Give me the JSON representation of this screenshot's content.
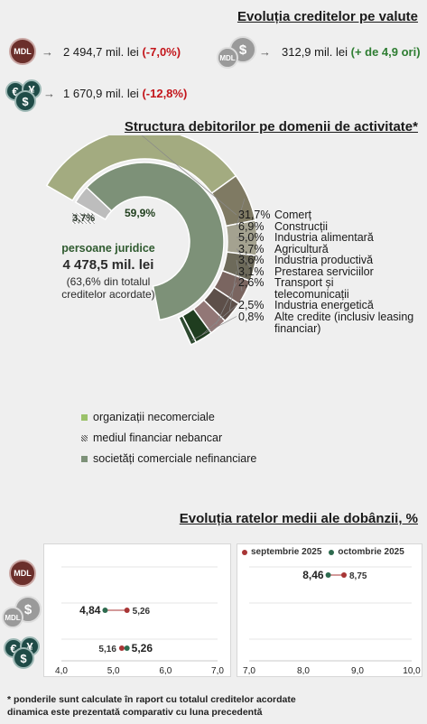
{
  "credits_section": {
    "title": "Evoluția creditelor pe valute",
    "mdl": {
      "icon": "mdl-coin-icon",
      "code": "MDL",
      "value": "2 494,7 mil. lei",
      "change": "(-7,0%)"
    },
    "fx_usd": {
      "icon": "dollar-coin-icon",
      "value": "312,9 mil. lei",
      "change": "(+ de 4,9 ori)"
    },
    "fx_eur": {
      "icon": "euro-yen-dollar-coins-icon",
      "value": "1 670,9 mil. lei",
      "change": "(-12,8%)"
    },
    "arrow": "→"
  },
  "structure_section": {
    "title": "Structura debitorilor pe domenii de activitate*",
    "center": {
      "title": "persoane juridice",
      "amount": "4 478,5 mil. lei",
      "note_line1": "(63,6% din totalul",
      "note_line2": "creditelor acordate)"
    },
    "inner_labels": {
      "small": "3,7%",
      "large": "59,9%"
    },
    "legend": [
      {
        "label": "organizații necomerciale",
        "color": "#9bc26a"
      },
      {
        "label": "mediul financiar nebancar",
        "color": "#444444"
      },
      {
        "label": "societăți comerciale nefinanciare",
        "color": "#7d9178"
      }
    ]
  },
  "rates_section": {
    "title": "Evoluția ratelor medii ale dobânzii, %",
    "legend": {
      "sep": "septembrie 2025",
      "oct": "octombrie 2025"
    },
    "colors": {
      "sep": "#a83535",
      "oct": "#2e6b4f"
    },
    "mdl_code": "MDL",
    "usd_mdl_code": "MDL"
  },
  "footnote": {
    "line1": "* ponderile sunt calculate în raport cu totalul creditelor acordate",
    "line2": "dinamica este prezentată comparativ cu luna precedentă"
  },
  "chart_data": [
    {
      "type": "pie",
      "title": "Structura debitorilor pe domenii de activitate*",
      "categories": [
        "Comerț",
        "Construcții",
        "Industria alimentară",
        "Agricultură",
        "Industria productivă",
        "Prestarea serviciilor",
        "Transport și telecomunicații",
        "Industria energetică",
        "Alte credite (inclusiv leasing financiar)"
      ],
      "values": [
        31.7,
        6.9,
        5.0,
        3.7,
        3.6,
        3.1,
        2.6,
        2.5,
        0.8
      ],
      "value_labels": [
        "31,7%",
        "6,9%",
        "5,0%",
        "3,7%",
        "3,6%",
        "3,1%",
        "2,6%",
        "2,5%",
        "0,8%"
      ],
      "colors": [
        "#a3ab80",
        "#7f7a63",
        "#a4a290",
        "#6d6a5a",
        "#7a6560",
        "#5d4f49",
        "#927776",
        "#1f3d1f",
        "#2e4a30"
      ],
      "inner_ring": {
        "categories": [
          "mediul financiar nebancar",
          "societăți comerciale nefinanciare"
        ],
        "values": [
          3.7,
          59.9
        ],
        "value_labels": [
          "3,7%",
          "59,9%"
        ]
      }
    },
    {
      "type": "scatter",
      "title": "Evoluția ratelor medii ale dobânzii, %",
      "series": [
        {
          "name": "septembrie 2025",
          "values": [
            5.26,
            5.16,
            8.75
          ]
        },
        {
          "name": "octombrie 2025",
          "values": [
            4.84,
            5.26,
            8.46
          ]
        }
      ],
      "rows": [
        "usd",
        "eur",
        "mdl"
      ],
      "panel_left": {
        "xlim": [
          4.0,
          7.0
        ],
        "ticks": [
          "4,0",
          "5,0",
          "6,0",
          "7,0"
        ],
        "points": [
          {
            "row": "usd",
            "sep": 5.26,
            "oct": 4.84,
            "sep_label": "5,26",
            "oct_label": "4,84"
          },
          {
            "row": "eur",
            "sep": 5.16,
            "oct": 5.26,
            "sep_label": "5,16",
            "oct_label": "5,26"
          }
        ]
      },
      "panel_right": {
        "xlim": [
          7.0,
          10.0
        ],
        "ticks": [
          "7,0",
          "8,0",
          "9,0",
          "10,0"
        ],
        "points": [
          {
            "row": "mdl",
            "sep": 8.75,
            "oct": 8.46,
            "sep_label": "8,75",
            "oct_label": "8,46"
          }
        ]
      }
    }
  ]
}
